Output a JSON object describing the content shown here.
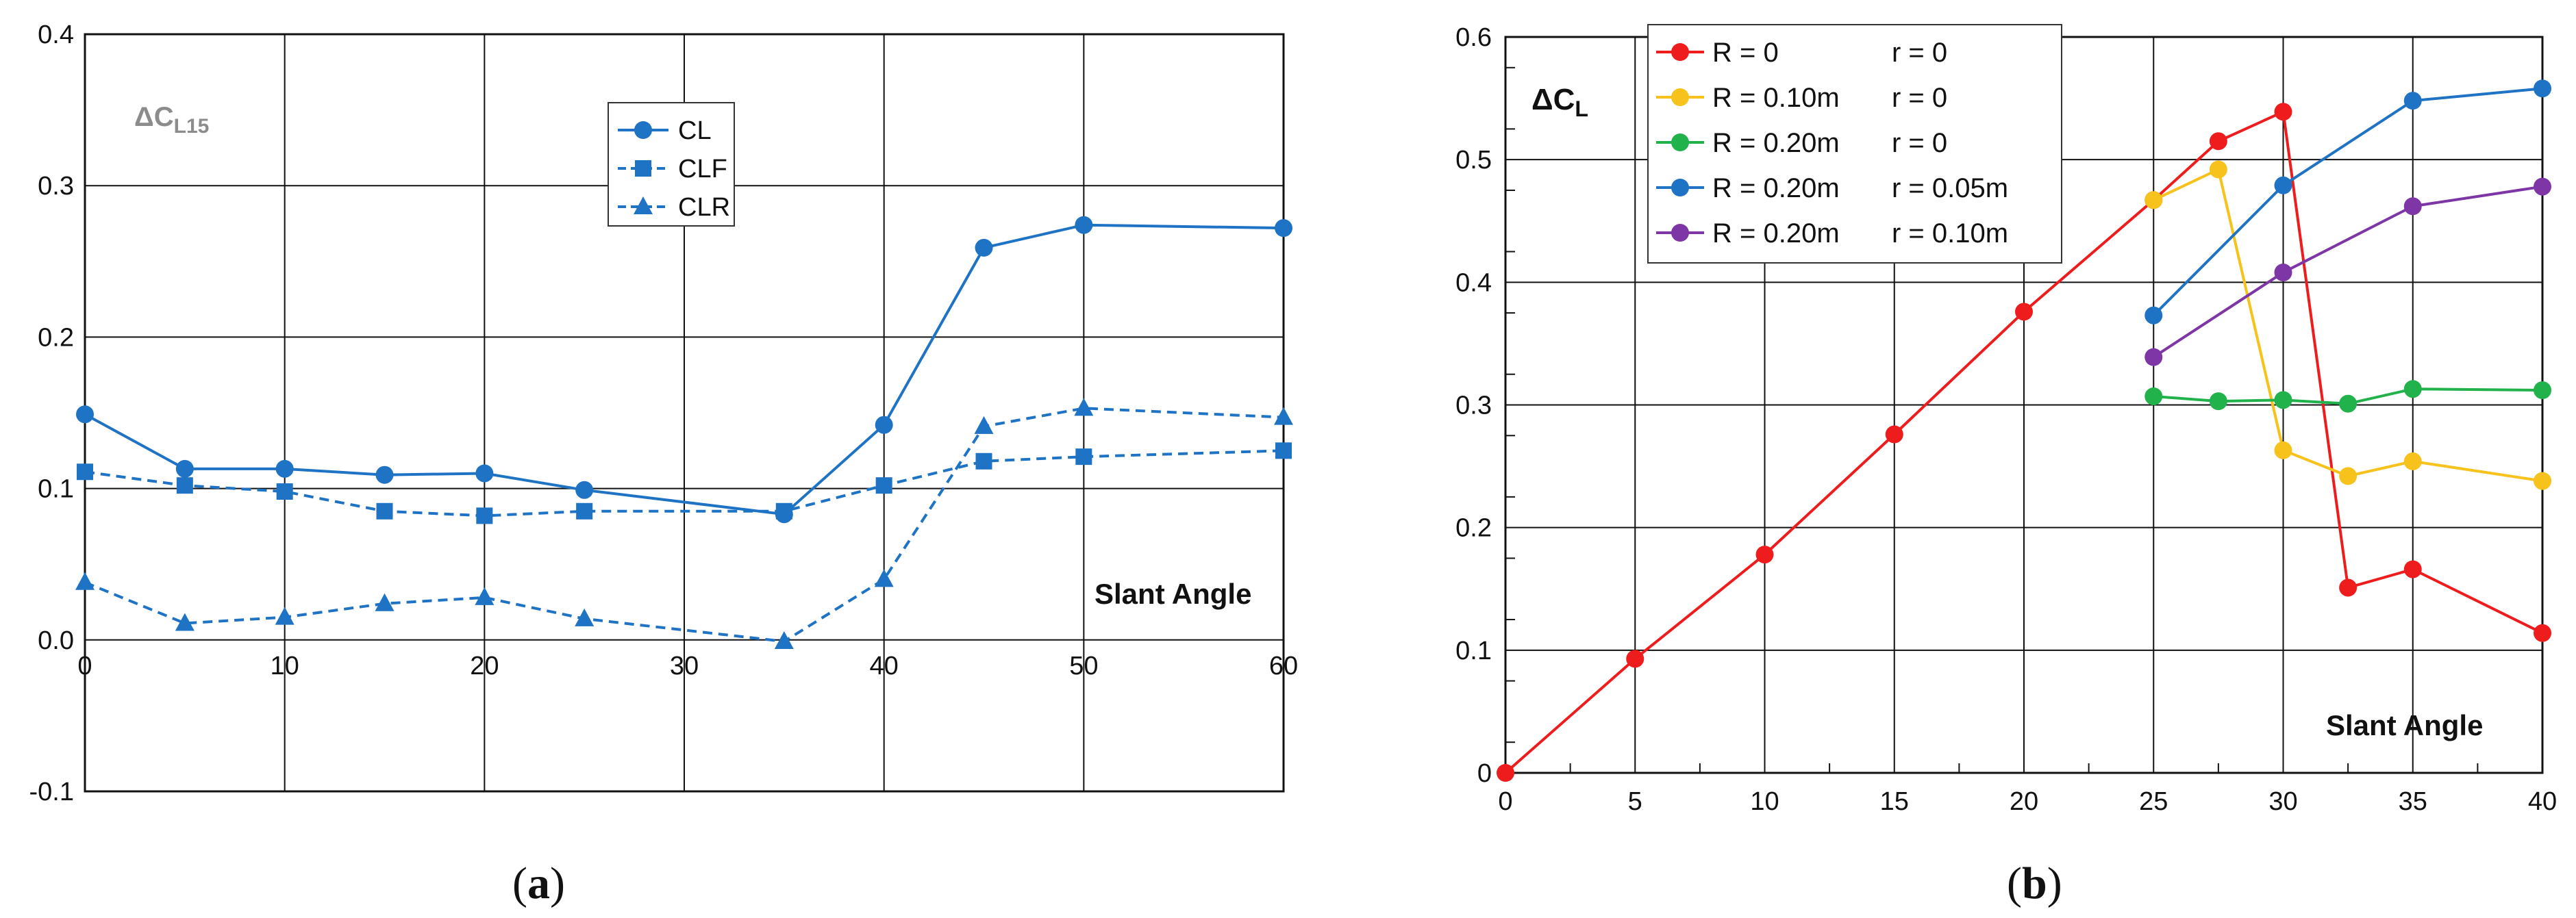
{
  "panels": [
    {
      "label_prefix": "(",
      "label_letter": "a",
      "label_suffix": ")"
    },
    {
      "label_prefix": "(",
      "label_letter": "b",
      "label_suffix": ")"
    }
  ],
  "chart_data": [
    {
      "type": "line",
      "ylabel_main": "ΔC",
      "ylabel_sub": "L15",
      "annotation": "Slant Angle",
      "x": [
        0,
        5,
        10,
        15,
        20,
        25,
        35,
        40,
        45,
        50,
        60
      ],
      "xlim": [
        0,
        60
      ],
      "ylim": [
        -0.1,
        0.4
      ],
      "xticks": [
        0,
        10,
        20,
        30,
        40,
        50,
        60
      ],
      "xtick_labels": [
        "0",
        "10",
        "20",
        "30",
        "40",
        "50",
        "60"
      ],
      "yticks": [
        -0.1,
        0.0,
        0.1,
        0.2,
        0.3,
        0.4
      ],
      "ytick_labels": [
        "-0.1",
        "0.0",
        "0.1",
        "0.2",
        "0.3",
        "0.4"
      ],
      "grid": true,
      "legend_position": "top-center",
      "series": [
        {
          "name": "CL",
          "color": "#1f73c5",
          "marker": "circle",
          "dash": false,
          "values": [
            0.149,
            0.113,
            0.113,
            0.109,
            0.11,
            0.099,
            0.083,
            0.142,
            0.259,
            0.274,
            0.272
          ]
        },
        {
          "name": "CLF",
          "color": "#1f73c5",
          "marker": "square",
          "dash": true,
          "values": [
            0.111,
            0.102,
            0.098,
            0.085,
            0.082,
            0.085,
            0.085,
            0.102,
            0.118,
            0.121,
            0.125
          ]
        },
        {
          "name": "CLR",
          "color": "#1f73c5",
          "marker": "triangle",
          "dash": true,
          "values": [
            0.038,
            0.011,
            0.015,
            0.024,
            0.028,
            0.014,
            -0.001,
            0.04,
            0.141,
            0.153,
            0.147
          ]
        }
      ]
    },
    {
      "type": "line",
      "ylabel_main": "ΔC",
      "ylabel_sub": "L",
      "annotation": "Slant Angle",
      "xlim": [
        0,
        40
      ],
      "ylim": [
        0,
        0.6
      ],
      "xticks": [
        0,
        5,
        10,
        15,
        20,
        25,
        30,
        35,
        40
      ],
      "xtick_labels": [
        "0",
        "5",
        "10",
        "15",
        "20",
        "25",
        "30",
        "35",
        "40"
      ],
      "yticks": [
        0,
        0.1,
        0.2,
        0.3,
        0.4,
        0.5,
        0.6
      ],
      "ytick_labels": [
        "0",
        "0.1",
        "0.2",
        "0.3",
        "0.4",
        "0.5",
        "0.6"
      ],
      "grid": true,
      "legend_position": "top-left",
      "series": [
        {
          "name": "R = 0",
          "name_r": "r = 0",
          "color": "#ee1c1c",
          "x": [
            0,
            5,
            10,
            15,
            20,
            25,
            27.5,
            30,
            32.5,
            35,
            40
          ],
          "values": [
            0.0,
            0.093,
            0.178,
            0.276,
            0.376,
            0.467,
            0.515,
            0.539,
            0.151,
            0.166,
            0.114
          ]
        },
        {
          "name": "R = 0.10m",
          "name_r": "r = 0",
          "color": "#f7c21c",
          "x": [
            25,
            27.5,
            30,
            32.5,
            35,
            40
          ],
          "values": [
            0.467,
            0.492,
            0.263,
            0.242,
            0.254,
            0.238
          ]
        },
        {
          "name": "R = 0.20m",
          "name_r": "r = 0",
          "color": "#21b24b",
          "x": [
            25,
            27.5,
            30,
            32.5,
            35,
            40
          ],
          "values": [
            0.307,
            0.303,
            0.304,
            0.301,
            0.313,
            0.312
          ]
        },
        {
          "name": "R = 0.20m",
          "name_r": "r = 0.05m",
          "color": "#1f73c5",
          "x": [
            25,
            30,
            35,
            40
          ],
          "values": [
            0.373,
            0.479,
            0.548,
            0.558
          ]
        },
        {
          "name": "R = 0.20m",
          "name_r": "r = 0.10m",
          "color": "#7e36a7",
          "x": [
            25,
            30,
            35,
            40
          ],
          "values": [
            0.339,
            0.408,
            0.462,
            0.478
          ]
        }
      ]
    }
  ]
}
